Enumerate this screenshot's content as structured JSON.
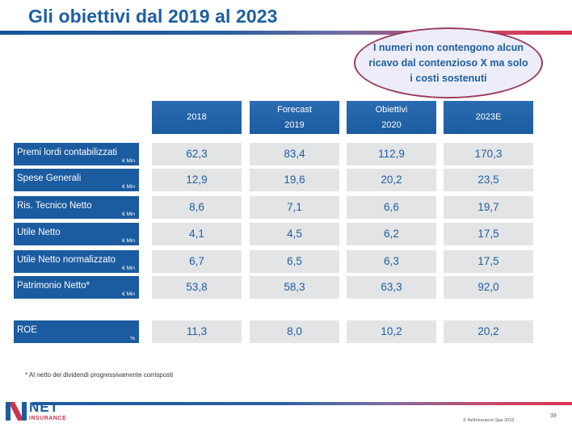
{
  "title": "Gli obiettivi dal 2019 al 2023",
  "callout": "I numeri non contengono alcun ricavo dal contenzioso X ma solo i costi sostenuti",
  "columns": [
    {
      "line1": "",
      "line2": "2018"
    },
    {
      "line1": "Forecast",
      "line2": "2019"
    },
    {
      "line1": "Obiettivi",
      "line2": "2020"
    },
    {
      "line1": "",
      "line2": "2023E"
    }
  ],
  "rows": [
    {
      "label": "Premi lordi contabilizzati",
      "unit": "€ Min",
      "values": [
        "62,3",
        "83,4",
        "112,9",
        "170,3"
      ]
    },
    {
      "label": "Spese Generali",
      "unit": "€ Min",
      "values": [
        "12,9",
        "19,6",
        "20,2",
        "23,5"
      ]
    },
    {
      "label": "Ris. Tecnico Netto",
      "unit": "€ Min",
      "values": [
        "8,6",
        "7,1",
        "6,6",
        "19,7"
      ]
    },
    {
      "label": "Utile Netto",
      "unit": "€ Min",
      "values": [
        "4,1",
        "4,5",
        "6,2",
        "17,5"
      ]
    },
    {
      "label": "Utile Netto normalizzato",
      "unit": "€ Min",
      "values": [
        "6,7",
        "6,5",
        "6,3",
        "17,5"
      ]
    },
    {
      "label": "Patrimonio Netto*",
      "unit": "€ Min",
      "values": [
        "53,8",
        "58,3",
        "63,3",
        "92,0"
      ]
    },
    {
      "label": "ROE",
      "unit": "%",
      "values": [
        "11,3",
        "8,0",
        "10,2",
        "20,2"
      ]
    }
  ],
  "footnote": "* Al netto dei dividendi progressivamente corrisposti",
  "logo": {
    "word": "NET",
    "sub": "INSURANCE"
  },
  "copyright": "© NetInsurance Spa 2019",
  "page_number": "39",
  "colors": {
    "primary": "#1b5ba0",
    "accent": "#d8334f",
    "cell_bg": "#e3e4e6"
  }
}
